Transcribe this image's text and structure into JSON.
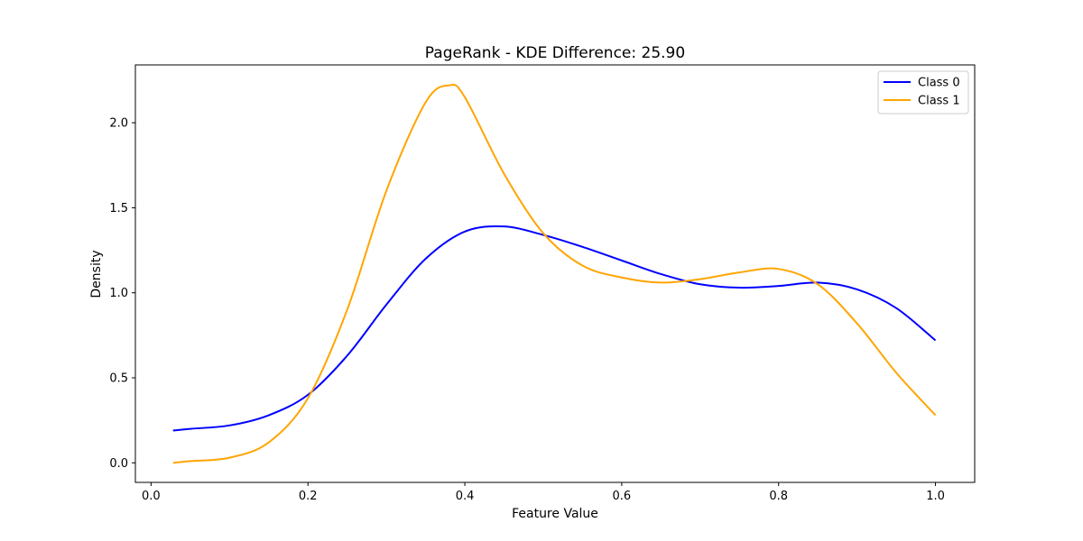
{
  "chart_data": {
    "type": "line",
    "title": "PageRank - KDE Difference: 25.90",
    "xlabel": "Feature Value",
    "ylabel": "Density",
    "xlim": [
      -0.02,
      1.05
    ],
    "ylim": [
      -0.115,
      2.34
    ],
    "xticks": [
      0.0,
      0.2,
      0.4,
      0.6,
      0.8,
      1.0
    ],
    "xtick_labels": [
      "0.0",
      "0.2",
      "0.4",
      "0.6",
      "0.8",
      "1.0"
    ],
    "yticks": [
      0.0,
      0.5,
      1.0,
      1.5,
      2.0
    ],
    "ytick_labels": [
      "0.0",
      "0.5",
      "1.0",
      "1.5",
      "2.0"
    ],
    "grid": false,
    "legend_position": "top-right",
    "series": [
      {
        "name": "Class 0",
        "color": "#0000ff",
        "x": [
          0.028,
          0.05,
          0.1,
          0.15,
          0.2,
          0.25,
          0.3,
          0.35,
          0.4,
          0.45,
          0.5,
          0.55,
          0.6,
          0.65,
          0.7,
          0.75,
          0.8,
          0.85,
          0.9,
          0.95,
          1.0
        ],
        "y": [
          0.19,
          0.2,
          0.22,
          0.28,
          0.4,
          0.63,
          0.93,
          1.2,
          1.36,
          1.39,
          1.34,
          1.27,
          1.19,
          1.11,
          1.05,
          1.03,
          1.04,
          1.06,
          1.02,
          0.91,
          0.72
        ]
      },
      {
        "name": "Class 1",
        "color": "#ffa500",
        "x": [
          0.028,
          0.05,
          0.1,
          0.15,
          0.2,
          0.25,
          0.3,
          0.35,
          0.38,
          0.4,
          0.45,
          0.5,
          0.55,
          0.6,
          0.65,
          0.7,
          0.75,
          0.8,
          0.85,
          0.9,
          0.95,
          1.0
        ],
        "y": [
          0.0,
          0.01,
          0.03,
          0.12,
          0.38,
          0.9,
          1.6,
          2.12,
          2.22,
          2.15,
          1.7,
          1.35,
          1.16,
          1.09,
          1.06,
          1.08,
          1.12,
          1.14,
          1.05,
          0.82,
          0.53,
          0.28
        ]
      }
    ]
  }
}
